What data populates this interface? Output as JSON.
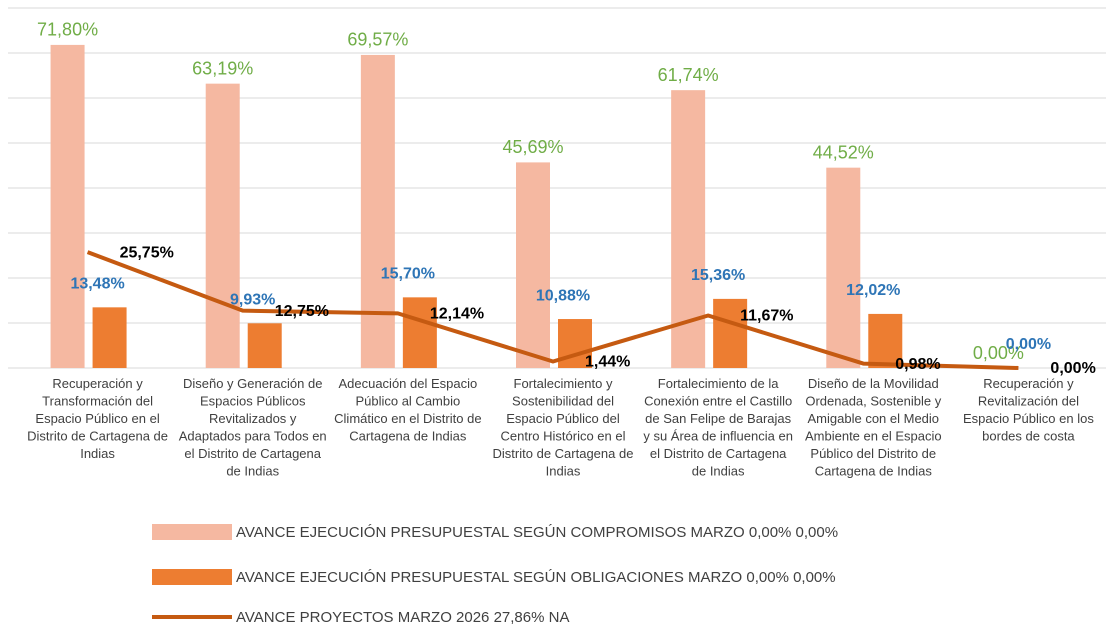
{
  "chart_data": {
    "type": "bar_line",
    "categories": [
      "Recuperación y Transformación del Espacio Público en el Distrito de Cartagena de Indias",
      "Diseño y Generación de Espacios Públicos Revitalizados y Adaptados para Todos en el Distrito de Cartagena de Indias",
      "Adecuación del Espacio Público al Cambio Climático en el Distrito de Cartagena de Indias",
      "Fortalecimiento y Sostenibilidad del Espacio Público del Centro Histórico en el Distrito de Cartagena de Indias",
      "Fortalecimiento de la Conexión entre el Castillo de San Felipe de Barajas y su Área de influencia en el Distrito de Cartagena de Indias",
      "Diseño de la Movilidad Ordenada, Sostenible y Amigable con el Medio Ambiente en el Espacio Público del Distrito de Cartagena de Indias",
      "Recuperación y Revitalización del Espacio Público en los bordes de costa"
    ],
    "series": [
      {
        "name": "AVANCE EJECUCIÓN PRESUPUESTAL SEGÚN COMPROMISOS MARZO 0,00% 0,00%",
        "type": "bar",
        "color": "#f5b8a1",
        "label_color": "#70ad47",
        "values": [
          71.8,
          63.19,
          69.57,
          45.69,
          61.74,
          44.52,
          0
        ],
        "value_labels": [
          "71,80%",
          "63,19%",
          "69,57%",
          "45,69%",
          "61,74%",
          "44,52%",
          "0,00%"
        ]
      },
      {
        "name": "AVANCE EJECUCIÓN PRESUPUESTAL SEGÚN OBLIGACIONES MARZO 0,00% 0,00%",
        "type": "bar",
        "color": "#ed7d31",
        "label_color": "#2e75b6",
        "values": [
          13.48,
          9.93,
          15.7,
          10.88,
          15.36,
          12.02,
          0
        ],
        "value_labels": [
          "13,48%",
          "9,93%",
          "15,70%",
          "10,88%",
          "15,36%",
          "12,02%",
          "0,00%"
        ]
      },
      {
        "name": "AVANCE PROYECTOS MARZO 2026 27,86% NA",
        "type": "line",
        "color": "#c55a11",
        "label_color": "#000000",
        "values": [
          25.75,
          12.75,
          12.14,
          1.44,
          11.67,
          0.98,
          0
        ],
        "value_labels": [
          "25,75%",
          "12,75%",
          "12,14%",
          "1,44%",
          "11,67%",
          "0,98%",
          "0,00%"
        ]
      }
    ],
    "ylim": [
      0,
      80
    ],
    "yticks": [
      0,
      10,
      20,
      30,
      40,
      50,
      60,
      70,
      80
    ],
    "grid": true,
    "legend": "bottom"
  }
}
